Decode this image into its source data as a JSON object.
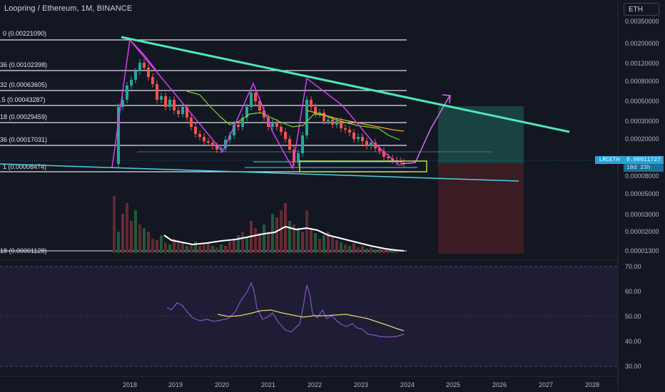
{
  "header": {
    "symbol_title": "Loopring / Ethereum, 1M, BINANCE",
    "currency_button": "ETH"
  },
  "price_axis": {
    "labels": [
      "0.00350000",
      "0.00200000",
      "0.00120000",
      "0.00080000",
      "0.00050000",
      "0.00030000",
      "0.00020000",
      "0.00008000",
      "0.00005000",
      "0.00003000",
      "0.00002000",
      "0.00001300"
    ],
    "last_price_symbol": "LRCETH",
    "last_price": "0.00011727",
    "countdown": "18d 23h"
  },
  "fib_levels": [
    {
      "label": "0 (0.00221090)"
    },
    {
      "label": "36 (0.00102398)"
    },
    {
      "label": "32 (0.00063605)"
    },
    {
      "label": ".5 (0.00043287)"
    },
    {
      "label": "18 (0.00029459)"
    },
    {
      "label": "36 (0.00017031)"
    },
    {
      "label": "1 (0.00008474)"
    },
    {
      "label": "18 (0.00001128)"
    }
  ],
  "rsi_axis": {
    "labels": [
      "70.00",
      "60.00",
      "50.00",
      "40.00",
      "30.00"
    ]
  },
  "time_axis": {
    "labels": [
      "2018",
      "2019",
      "2020",
      "2021",
      "2022",
      "2023",
      "2024",
      "2025",
      "2026",
      "2027",
      "2028"
    ]
  },
  "colors": {
    "background": "#131722",
    "up": "#26a69a",
    "down": "#ef5350",
    "trendline": "#4ee8b5",
    "zigzag": "#e040fb",
    "support_line": "#4dd0e1",
    "ma_green": "#7cd92a",
    "ma_orange": "#f5a623",
    "rsi": "#7e57c2",
    "rsi_ma": "#e6d36a",
    "box_yellow": "#c6e83a"
  },
  "chart_data": {
    "type": "candlestick",
    "symbol": "LRCETH",
    "interval": "1M",
    "exchange": "BINANCE",
    "y_scale": "log",
    "price_range": [
      1.13e-05,
      0.0035
    ],
    "fib_retracements": [
      0.0022109,
      0.00102398,
      0.00063605,
      0.00043287,
      0.00029459,
      0.00017031,
      8.474e-05,
      1.128e-05
    ],
    "last_price": 0.00011727,
    "approx_close_path": [
      {
        "date": "2017-12",
        "close": 0.00012
      },
      {
        "date": "2018-01",
        "close": 0.0019
      },
      {
        "date": "2018-04",
        "close": 0.0007
      },
      {
        "date": "2018-10",
        "close": 0.00035
      },
      {
        "date": "2019-06",
        "close": 0.00018
      },
      {
        "date": "2020-01",
        "close": 0.00015
      },
      {
        "date": "2020-09",
        "close": 0.00075
      },
      {
        "date": "2021-03",
        "close": 0.0003
      },
      {
        "date": "2021-07",
        "close": 0.0001
      },
      {
        "date": "2021-11",
        "close": 0.0009
      },
      {
        "date": "2022-06",
        "close": 0.00035
      },
      {
        "date": "2023-06",
        "close": 0.00016
      },
      {
        "date": "2023-12",
        "close": 0.00011727
      }
    ],
    "rsi_range": [
      30,
      70
    ],
    "rsi_approx": [
      55,
      62,
      47,
      45,
      46,
      47,
      68,
      45,
      39,
      66,
      47,
      49,
      46,
      42,
      41,
      43
    ]
  }
}
